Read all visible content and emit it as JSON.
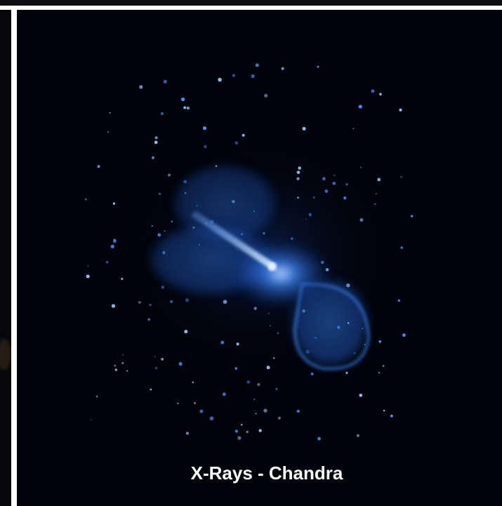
{
  "caption": "X-Rays - Chandra"
}
